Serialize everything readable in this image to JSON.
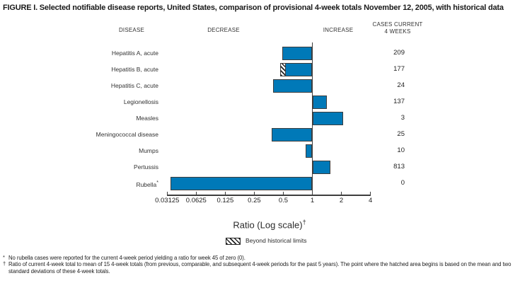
{
  "title": "FIGURE I. Selected notifiable disease reports, United States, comparison of provisional 4-week totals November 12, 2005, with historical data",
  "columns": {
    "disease": "DISEASE",
    "decrease": "DECREASE",
    "increase": "INCREASE",
    "cases_line1": "CASES CURRENT",
    "cases_line2": "4 WEEKS"
  },
  "axis": {
    "label": "Ratio (Log scale)",
    "label_sup": "†",
    "tick_labels": [
      "0.03125",
      "0.0625",
      "0.125",
      "0.25",
      "0.5",
      "1",
      "2",
      "4"
    ]
  },
  "legend": {
    "label": "Beyond historical limits",
    "swatch": "hatched-pattern"
  },
  "footnotes": [
    {
      "marker": "*",
      "text": "No rubella cases were reported for the current 4-week period yielding a ratio for week 45 of zero (0)."
    },
    {
      "marker": "†",
      "text": "Ratio of current 4-week total to mean of 15 4-week totals (from previous, comparable, and subsequent 4-week periods for the past 5 years). The point where the hatched area begins is based on the mean and two standard deviations of these 4-week totals."
    }
  ],
  "colors": {
    "bar_fill": "#0079b8",
    "bar_border": "#3d3d3d",
    "text": "#231f20"
  },
  "chart_data": {
    "type": "bar",
    "orientation": "horizontal",
    "scale": "log2",
    "xlabel": "Ratio (Log scale)",
    "xlim": [
      0.03125,
      4
    ],
    "baseline": 1,
    "tick_values": [
      0.03125,
      0.0625,
      0.125,
      0.25,
      0.5,
      1,
      2,
      4
    ],
    "rows": [
      {
        "disease": "Hepatitis A, acute",
        "ratio": 0.49,
        "cases": 209,
        "beyond_historical_limits": false
      },
      {
        "disease": "Hepatitis B, acute",
        "ratio": 0.46,
        "cases": 177,
        "beyond_historical_limits": true,
        "hatch_from": 0.46,
        "hatch_to": 0.52
      },
      {
        "disease": "Hepatitis C, acute",
        "ratio": 0.39,
        "cases": 24,
        "beyond_historical_limits": false
      },
      {
        "disease": "Legionellosis",
        "ratio": 1.41,
        "cases": 137,
        "beyond_historical_limits": false
      },
      {
        "disease": "Measles",
        "ratio": 2.1,
        "cases": 3,
        "beyond_historical_limits": false
      },
      {
        "disease": "Meningococcal disease",
        "ratio": 0.38,
        "cases": 25,
        "beyond_historical_limits": false
      },
      {
        "disease": "Mumps",
        "ratio": 0.85,
        "cases": 10,
        "beyond_historical_limits": false
      },
      {
        "disease": "Pertussis",
        "ratio": 1.53,
        "cases": 813,
        "beyond_historical_limits": false
      },
      {
        "disease": "Rubella",
        "label_sup": "*",
        "ratio": 0.034,
        "actual_ratio": 0,
        "cases": 0,
        "beyond_historical_limits": false
      }
    ]
  }
}
